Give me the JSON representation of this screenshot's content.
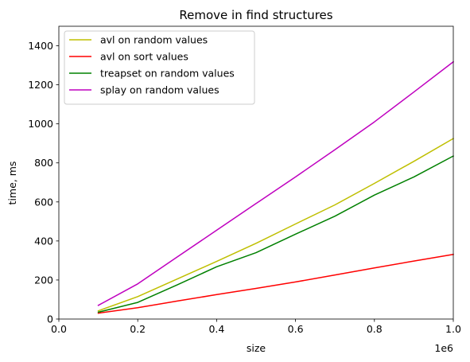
{
  "chart_data": {
    "type": "line",
    "title": "Remove in find structures",
    "xlabel": "size",
    "ylabel": "time, ms",
    "x_offset_label": "1e6",
    "xlim": [
      0,
      1000000
    ],
    "ylim": [
      0,
      1500
    ],
    "xticks": [
      0,
      200000,
      400000,
      600000,
      800000,
      1000000
    ],
    "xtick_labels": [
      "0.0",
      "0.2",
      "0.4",
      "0.6",
      "0.8",
      "1.0"
    ],
    "yticks": [
      0,
      200,
      400,
      600,
      800,
      1000,
      1200,
      1400
    ],
    "ytick_labels": [
      "0",
      "200",
      "400",
      "600",
      "800",
      "1000",
      "1200",
      "1400"
    ],
    "grid": false,
    "legend_position": "top-left",
    "x": [
      100000,
      200000,
      300000,
      400000,
      500000,
      600000,
      700000,
      800000,
      900000,
      1000000
    ],
    "series": [
      {
        "name": "avl on random values",
        "color": "#bfbf00",
        "values": [
          42,
          115,
          205,
          295,
          388,
          487,
          585,
          695,
          808,
          925
        ]
      },
      {
        "name": "avl on sort values",
        "color": "#ff0000",
        "values": [
          30,
          58,
          92,
          125,
          157,
          190,
          226,
          262,
          297,
          331
        ]
      },
      {
        "name": "treapset on random values",
        "color": "#008000",
        "values": [
          35,
          85,
          175,
          268,
          340,
          435,
          527,
          635,
          728,
          835
        ]
      },
      {
        "name": "splay on random values",
        "color": "#bf00bf",
        "values": [
          70,
          180,
          318,
          455,
          592,
          728,
          868,
          1010,
          1163,
          1318
        ]
      }
    ]
  }
}
